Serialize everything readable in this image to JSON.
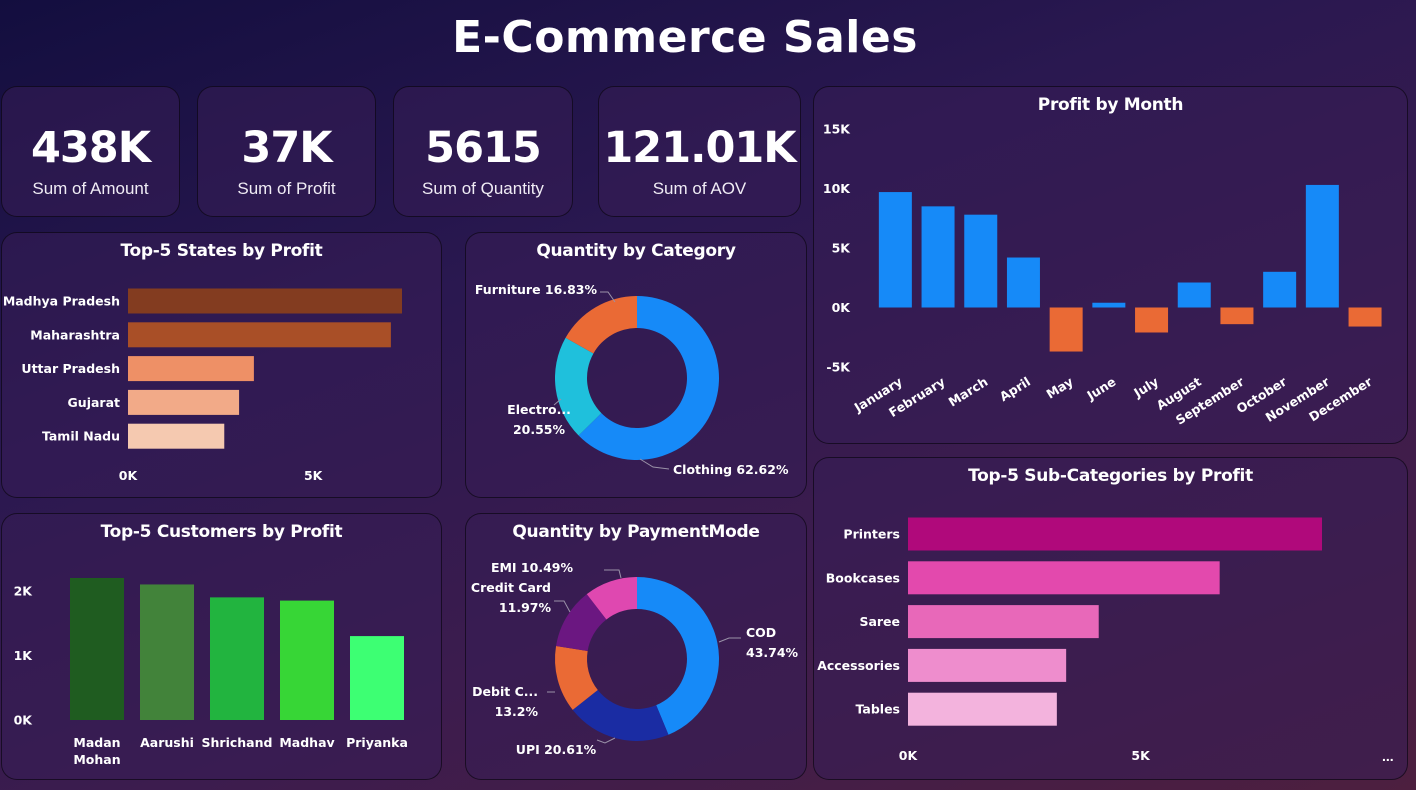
{
  "title": "E-Commerce Sales",
  "kpis": [
    {
      "value": "438K",
      "label": "Sum of Amount"
    },
    {
      "value": "37K",
      "label": "Sum of Profit"
    },
    {
      "value": "5615",
      "label": "Sum of Quantity"
    },
    {
      "value": "121.01K",
      "label": "Sum of AOV"
    }
  ],
  "more_indicator": "...",
  "chart_data": [
    {
      "id": "states",
      "type": "bar",
      "orientation": "horizontal",
      "title": "Top-5 States by Profit",
      "categories": [
        "Madhya Pradesh",
        "Maharashtra",
        "Uttar Pradesh",
        "Gujarat",
        "Tamil Nadu"
      ],
      "values": [
        7400,
        7100,
        3400,
        3000,
        2600
      ],
      "colors": [
        "#833c20",
        "#a94f27",
        "#ee9066",
        "#f2aa88",
        "#f5c9b0"
      ],
      "xlim": [
        0,
        7400
      ],
      "xticks": [
        0,
        5000
      ],
      "xtick_labels": [
        "0K",
        "5K"
      ]
    },
    {
      "id": "category",
      "type": "pie",
      "donut": true,
      "title": "Quantity by Category",
      "labels": [
        "Clothing",
        "Electronics",
        "Furniture"
      ],
      "values": [
        62.62,
        20.55,
        16.83
      ],
      "colors": [
        "#168af8",
        "#1fc0dc",
        "#ea6a35"
      ],
      "label_texts": [
        [
          "Clothing 62.62%"
        ],
        [
          "Electro...",
          "20.55%"
        ],
        [
          "Furniture 16.83%"
        ]
      ]
    },
    {
      "id": "month",
      "type": "bar",
      "title": "Profit by Month",
      "categories": [
        "January",
        "February",
        "March",
        "April",
        "May",
        "June",
        "July",
        "August",
        "September",
        "October",
        "November",
        "December"
      ],
      "values": [
        9700,
        8500,
        7800,
        4200,
        -3700,
        400,
        -2100,
        2100,
        -1400,
        3000,
        10300,
        -1600
      ],
      "positive_color": "#168af8",
      "negative_color": "#ea6a35",
      "ylim": [
        -5000,
        15000
      ],
      "yticks": [
        15000,
        10000,
        5000,
        0,
        -5000
      ],
      "ytick_labels": [
        "15K",
        "10K",
        "5K",
        "0K",
        "-5K"
      ]
    },
    {
      "id": "customers",
      "type": "bar",
      "title": "Top-5 Customers by Profit",
      "categories": [
        "Madan Mohan",
        "Aarushi",
        "Shrichand",
        "Madhav",
        "Priyanka"
      ],
      "category_lines": [
        [
          "Madan",
          "Mohan"
        ],
        [
          "Aarushi"
        ],
        [
          "Shrichand"
        ],
        [
          "Madhav"
        ],
        [
          "Priyanka"
        ]
      ],
      "values": [
        2200,
        2100,
        1900,
        1850,
        1300
      ],
      "colors": [
        "#1f5c20",
        "#42833a",
        "#22b43f",
        "#37d636",
        "#3dff73"
      ],
      "ylim": [
        0,
        2200
      ],
      "yticks": [
        2000,
        1000,
        0
      ],
      "ytick_labels": [
        "2K",
        "1K",
        "0K"
      ]
    },
    {
      "id": "payment",
      "type": "pie",
      "donut": true,
      "title": "Quantity by PaymentMode",
      "labels": [
        "COD",
        "UPI",
        "Debit Card",
        "Credit Card",
        "EMI"
      ],
      "values": [
        43.74,
        20.61,
        13.2,
        11.97,
        10.49
      ],
      "colors": [
        "#168af8",
        "#1a2ca3",
        "#ea6a35",
        "#6b1781",
        "#df48b0"
      ],
      "label_texts": [
        [
          "COD",
          "43.74%"
        ],
        [
          "UPI 20.61%"
        ],
        [
          "Debit C...",
          "13.2%"
        ],
        [
          "Credit Card",
          "11.97%"
        ],
        [
          "EMI 10.49%"
        ]
      ]
    },
    {
      "id": "subcat",
      "type": "bar",
      "orientation": "horizontal",
      "title": "Top-5 Sub-Categories by Profit",
      "categories": [
        "Printers",
        "Bookcases",
        "Saree",
        "Accessories",
        "Tables"
      ],
      "values": [
        8900,
        6700,
        4100,
        3400,
        3200
      ],
      "colors": [
        "#b0097b",
        "#e349ad",
        "#e868b9",
        "#ee8dcd",
        "#f3b3dd"
      ],
      "xlim": [
        0,
        8900
      ],
      "xticks": [
        0,
        5000
      ],
      "xtick_labels": [
        "0K",
        "5K"
      ]
    }
  ]
}
